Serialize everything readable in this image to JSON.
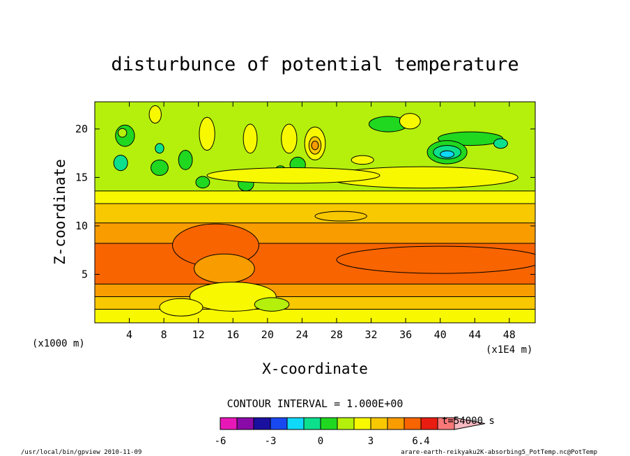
{
  "chart_data": {
    "type": "heatmap",
    "title": "disturbunce of potential temperature",
    "xlabel": "X-coordinate",
    "ylabel": "Z-coordinate",
    "x_unit_note": "(x1E4 m)",
    "y_unit_note": "(x1000 m)",
    "xlim": [
      0,
      51
    ],
    "ylim": [
      0,
      22.8
    ],
    "x_ticks": [
      4,
      8,
      12,
      16,
      20,
      24,
      28,
      32,
      36,
      40,
      44,
      48
    ],
    "y_ticks": [
      5,
      10,
      15,
      20
    ],
    "contour_interval_text": "CONTOUR INTERVAL = 1.000E+00",
    "time_text": "t=54000 s",
    "colorbar": {
      "levels": [
        -6,
        -5,
        -4,
        -3,
        -2,
        -1,
        0,
        1,
        2,
        3,
        4,
        5,
        6.4
      ],
      "tick_labels": [
        "-6",
        "-3",
        "0",
        "3",
        "6.4"
      ],
      "tick_values": [
        -6,
        -3,
        0,
        3,
        6.4
      ],
      "colors": [
        "#e818b8",
        "#8a0aa8",
        "#1a10a0",
        "#1848f0",
        "#10d8f8",
        "#0de08c",
        "#20d820",
        "#b4f00c",
        "#f8f800",
        "#f8c800",
        "#f89c00",
        "#f86400",
        "#e81c10",
        "#f87878",
        "#f8b8c0"
      ]
    },
    "bands": [
      {
        "z": [
          0.0,
          1.4
        ],
        "value": 1
      },
      {
        "z": [
          1.4,
          2.7
        ],
        "value": 2
      },
      {
        "z": [
          2.7,
          4.0
        ],
        "value": 3
      },
      {
        "z": [
          4.0,
          8.2
        ],
        "value": 4
      },
      {
        "z": [
          8.2,
          10.3
        ],
        "value": 3
      },
      {
        "z": [
          10.3,
          12.3
        ],
        "value": 2
      },
      {
        "z": [
          12.3,
          13.6
        ],
        "value": 1
      },
      {
        "z": [
          13.6,
          22.8
        ],
        "value": 0
      }
    ],
    "blobs": [
      {
        "x": 3.5,
        "z": 19.3,
        "w": 2.2,
        "h": 2.2,
        "value": -1
      },
      {
        "x": 3.0,
        "z": 16.5,
        "w": 1.6,
        "h": 1.6,
        "value": -2
      },
      {
        "x": 7.5,
        "z": 16.0,
        "w": 2.0,
        "h": 1.6,
        "value": -1
      },
      {
        "x": 10.5,
        "z": 16.8,
        "w": 1.6,
        "h": 2.0,
        "value": -1
      },
      {
        "x": 12.5,
        "z": 14.5,
        "w": 1.6,
        "h": 1.2,
        "value": -1
      },
      {
        "x": 17.5,
        "z": 14.3,
        "w": 1.8,
        "h": 1.4,
        "value": -1
      },
      {
        "x": 21.5,
        "z": 15.5,
        "w": 1.4,
        "h": 1.4,
        "value": -1
      },
      {
        "x": 23.5,
        "z": 16.3,
        "w": 1.8,
        "h": 1.6,
        "value": -1
      },
      {
        "x": 43.5,
        "z": 19.0,
        "w": 7.5,
        "h": 1.4,
        "value": -1
      },
      {
        "x": 34.0,
        "z": 20.5,
        "w": 4.5,
        "h": 1.6,
        "value": -1
      },
      {
        "x": 40.8,
        "z": 17.6,
        "w": 4.6,
        "h": 2.4,
        "value": -1
      },
      {
        "x": 40.8,
        "z": 17.6,
        "w": 3.2,
        "h": 1.4,
        "value": -2
      },
      {
        "x": 40.8,
        "z": 17.4,
        "w": 1.6,
        "h": 0.7,
        "value": -3
      },
      {
        "x": 47.0,
        "z": 18.5,
        "w": 1.6,
        "h": 1.0,
        "value": -2
      },
      {
        "x": 7.5,
        "z": 18.0,
        "w": 1.0,
        "h": 1.0,
        "value": -2
      },
      {
        "x": 3.2,
        "z": 19.6,
        "w": 1.0,
        "h": 0.9,
        "value": 0
      },
      {
        "x": 7.0,
        "z": 21.5,
        "w": 1.4,
        "h": 1.8,
        "value": 1
      },
      {
        "x": 13.0,
        "z": 19.5,
        "w": 1.8,
        "h": 3.4,
        "value": 1
      },
      {
        "x": 18.0,
        "z": 19.0,
        "w": 1.6,
        "h": 3.0,
        "value": 1
      },
      {
        "x": 22.5,
        "z": 19.0,
        "w": 1.8,
        "h": 3.0,
        "value": 1
      },
      {
        "x": 25.5,
        "z": 18.5,
        "w": 2.4,
        "h": 3.4,
        "value": 1
      },
      {
        "x": 25.5,
        "z": 18.3,
        "w": 1.4,
        "h": 1.8,
        "value": 2
      },
      {
        "x": 25.5,
        "z": 18.3,
        "w": 0.8,
        "h": 0.9,
        "value": 3
      },
      {
        "x": 36.5,
        "z": 20.8,
        "w": 2.4,
        "h": 1.6,
        "value": 1
      },
      {
        "x": 31.0,
        "z": 16.8,
        "w": 2.6,
        "h": 0.9,
        "value": 1
      },
      {
        "x": 38.0,
        "z": 15.0,
        "w": 22.0,
        "h": 2.2,
        "value": 1
      },
      {
        "x": 23.0,
        "z": 15.2,
        "w": 20.0,
        "h": 1.6,
        "value": 1
      },
      {
        "x": 14.0,
        "z": 8.0,
        "w": 10.0,
        "h": 4.4,
        "value": 4
      },
      {
        "x": 15.0,
        "z": 5.6,
        "w": 7.0,
        "h": 3.0,
        "value": 3
      },
      {
        "x": 16.0,
        "z": 2.7,
        "w": 10.0,
        "h": 3.0,
        "value": 1
      },
      {
        "x": 10.0,
        "z": 1.6,
        "w": 5.0,
        "h": 1.8,
        "value": 1
      },
      {
        "x": 20.5,
        "z": 1.9,
        "w": 4.0,
        "h": 1.4,
        "value": 0
      },
      {
        "x": 40.0,
        "z": 6.5,
        "w": 24.0,
        "h": 2.8,
        "value": 4
      },
      {
        "x": 28.5,
        "z": 11.0,
        "w": 6.0,
        "h": 1.0,
        "value": 2
      }
    ]
  },
  "footer": {
    "left": "/usr/local/bin/gpview  2010-11-09",
    "right": "arare-earth-reikyaku2K-absorbing5_PotTemp.nc@PotTemp"
  }
}
